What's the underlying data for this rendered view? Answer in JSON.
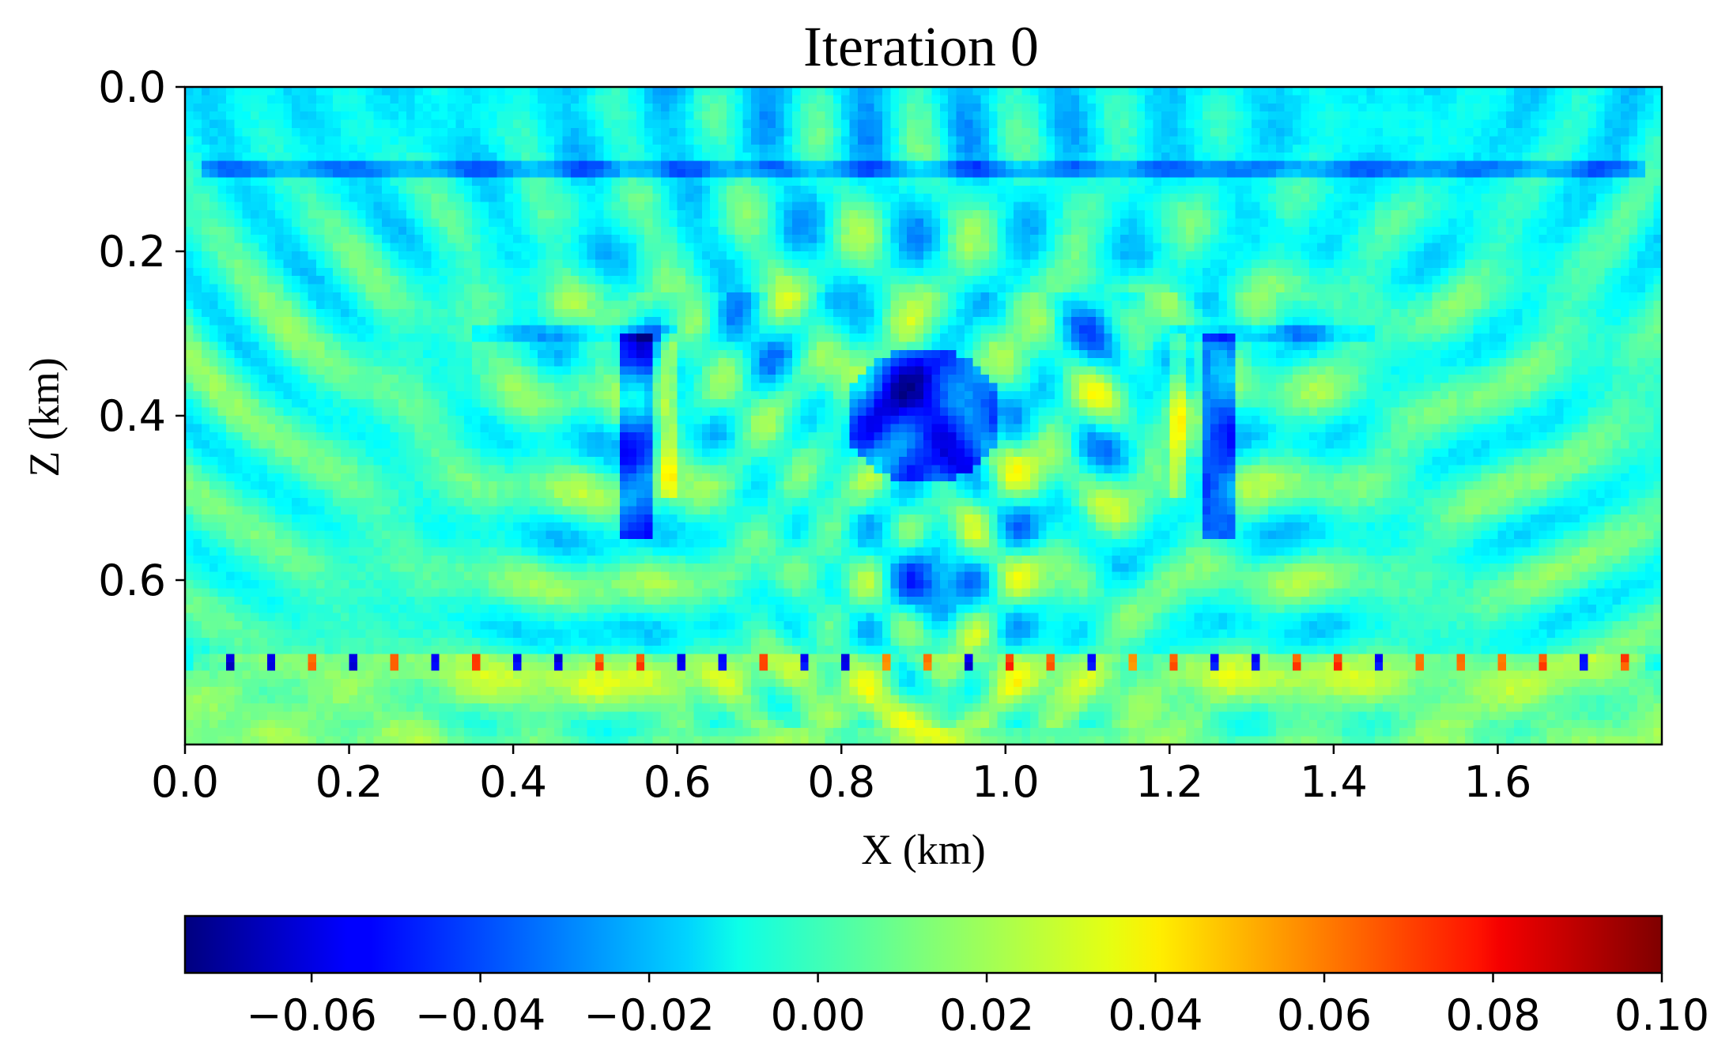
{
  "chart_data": {
    "type": "heatmap",
    "title": "Iteration 0",
    "xlabel": "X (km)",
    "ylabel": "Z (km)",
    "xlim": [
      0.0,
      1.8
    ],
    "ylim": [
      0.8,
      0.0
    ],
    "y_inverted": true,
    "xticks": [
      "0.0",
      "0.2",
      "0.4",
      "0.6",
      "0.8",
      "1.0",
      "1.2",
      "1.4",
      "1.6"
    ],
    "xtick_values": [
      0.0,
      0.2,
      0.4,
      0.6,
      0.8,
      1.0,
      1.2,
      1.4,
      1.6
    ],
    "yticks": [
      "0.0",
      "0.2",
      "0.4",
      "0.6"
    ],
    "ytick_values": [
      0.0,
      0.2,
      0.4,
      0.6
    ],
    "grid": false,
    "colormap": "jet",
    "colorbar": {
      "orientation": "horizontal",
      "placement": "bottom",
      "vmin": -0.075,
      "vmax": 0.1,
      "ticks": [
        "−0.06",
        "−0.04",
        "−0.02",
        "0.00",
        "0.02",
        "0.04",
        "0.06",
        "0.08",
        "0.10"
      ],
      "tick_values": [
        -0.06,
        -0.04,
        -0.02,
        0.0,
        0.02,
        0.04,
        0.06,
        0.08,
        0.1
      ]
    },
    "features": {
      "horizontal_reflectors_z_km": [
        0.1,
        0.3,
        0.7
      ],
      "anomaly": {
        "x_center_km": 0.9,
        "z_center_km": 0.4,
        "value": -0.06
      },
      "background_value": 0.0
    }
  }
}
